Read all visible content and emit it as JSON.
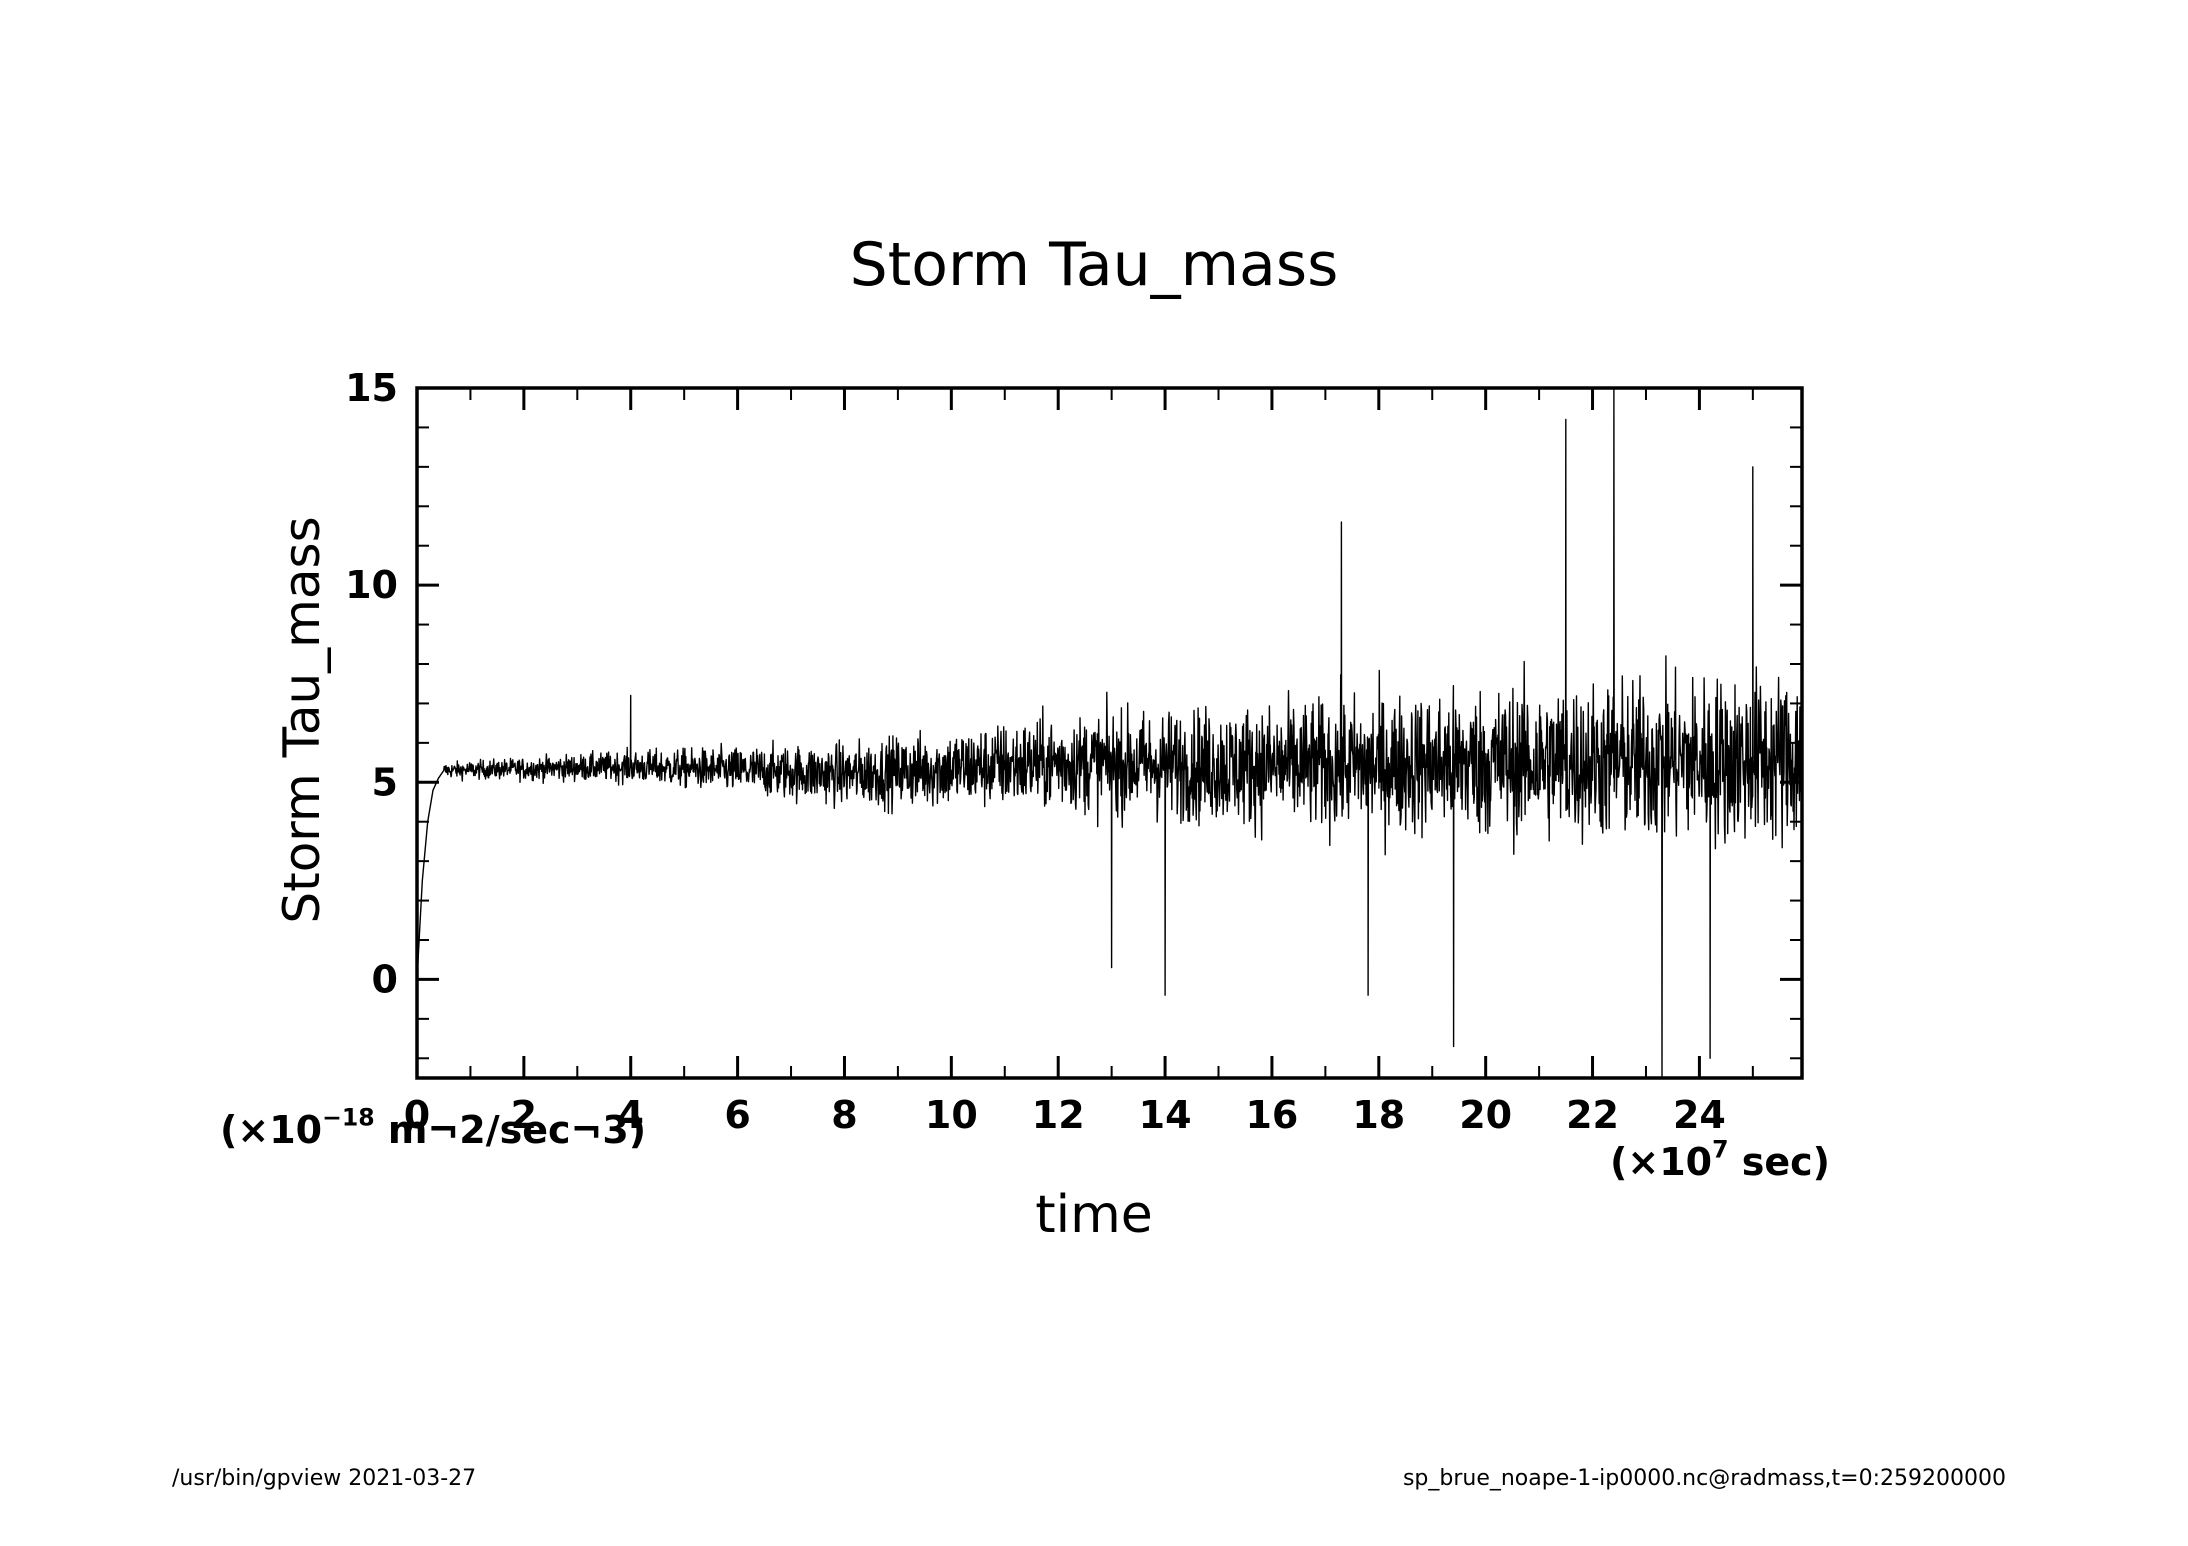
{
  "chart_data": {
    "type": "line",
    "title": "Storm Tau_mass",
    "xlabel": "time",
    "ylabel": "Storm Tau_mass",
    "x_unit": {
      "prefix": "(×10",
      "exp": "7",
      "suffix": " sec)"
    },
    "y_unit": {
      "prefix": "(×10",
      "exp": "−18",
      "suffix": " m¬2/sec¬3)"
    },
    "xlim": [
      0,
      25.92
    ],
    "ylim": [
      -2.5,
      15
    ],
    "x_ticks": [
      0,
      2,
      4,
      6,
      8,
      10,
      12,
      14,
      16,
      18,
      20,
      22,
      24
    ],
    "y_ticks": [
      0,
      5,
      10,
      15
    ],
    "x_tick_labels": [
      "0",
      "2",
      "4",
      "6",
      "8",
      "10",
      "12",
      "14",
      "16",
      "18",
      "20",
      "22",
      "24"
    ],
    "y_tick_labels": [
      "0",
      "5",
      "10",
      "15"
    ],
    "x_minor_step": 1,
    "y_minor_step": 1,
    "grid": false,
    "series": [
      {
        "name": "Storm Tau_mass",
        "color": "#000000",
        "description": "rapid rise from 0 to ~5.3 within first 0.5e7 sec, then noisy fluctuation around ~5.5 with amplitude growing over time",
        "envelope": [
          {
            "x": 0.5,
            "mean": 5.3,
            "amplitude": 0.25
          },
          {
            "x": 4,
            "mean": 5.4,
            "amplitude": 0.5
          },
          {
            "x": 8,
            "mean": 5.2,
            "amplitude": 1.0
          },
          {
            "x": 12,
            "mean": 5.5,
            "amplitude": 1.5
          },
          {
            "x": 16,
            "mean": 5.4,
            "amplitude": 2.0
          },
          {
            "x": 20,
            "mean": 5.5,
            "amplitude": 2.4
          },
          {
            "x": 25.92,
            "mean": 5.6,
            "amplitude": 2.8
          }
        ],
        "points": [
          {
            "x": 0,
            "y": 0
          },
          {
            "x": 0.1,
            "y": 2.5
          },
          {
            "x": 0.2,
            "y": 4.0
          },
          {
            "x": 0.3,
            "y": 4.8
          },
          {
            "x": 0.4,
            "y": 5.1
          },
          {
            "x": 0.5,
            "y": 5.3
          },
          {
            "x": 4.0,
            "y": 7.2
          },
          {
            "x": 13.0,
            "y": 0.3
          },
          {
            "x": 14.0,
            "y": -0.4
          },
          {
            "x": 17.3,
            "y": 11.6
          },
          {
            "x": 17.8,
            "y": -0.4
          },
          {
            "x": 19.4,
            "y": -1.7
          },
          {
            "x": 21.5,
            "y": 14.2
          },
          {
            "x": 22.4,
            "y": 15.0
          },
          {
            "x": 23.3,
            "y": -2.5
          },
          {
            "x": 24.2,
            "y": -2.0
          },
          {
            "x": 25.0,
            "y": 13.0
          }
        ]
      }
    ]
  },
  "footer": {
    "left": "/usr/bin/gpview   2021-03-27",
    "right": "sp_brue_noape-1-ip0000.nc@radmass,t=0:259200000"
  }
}
